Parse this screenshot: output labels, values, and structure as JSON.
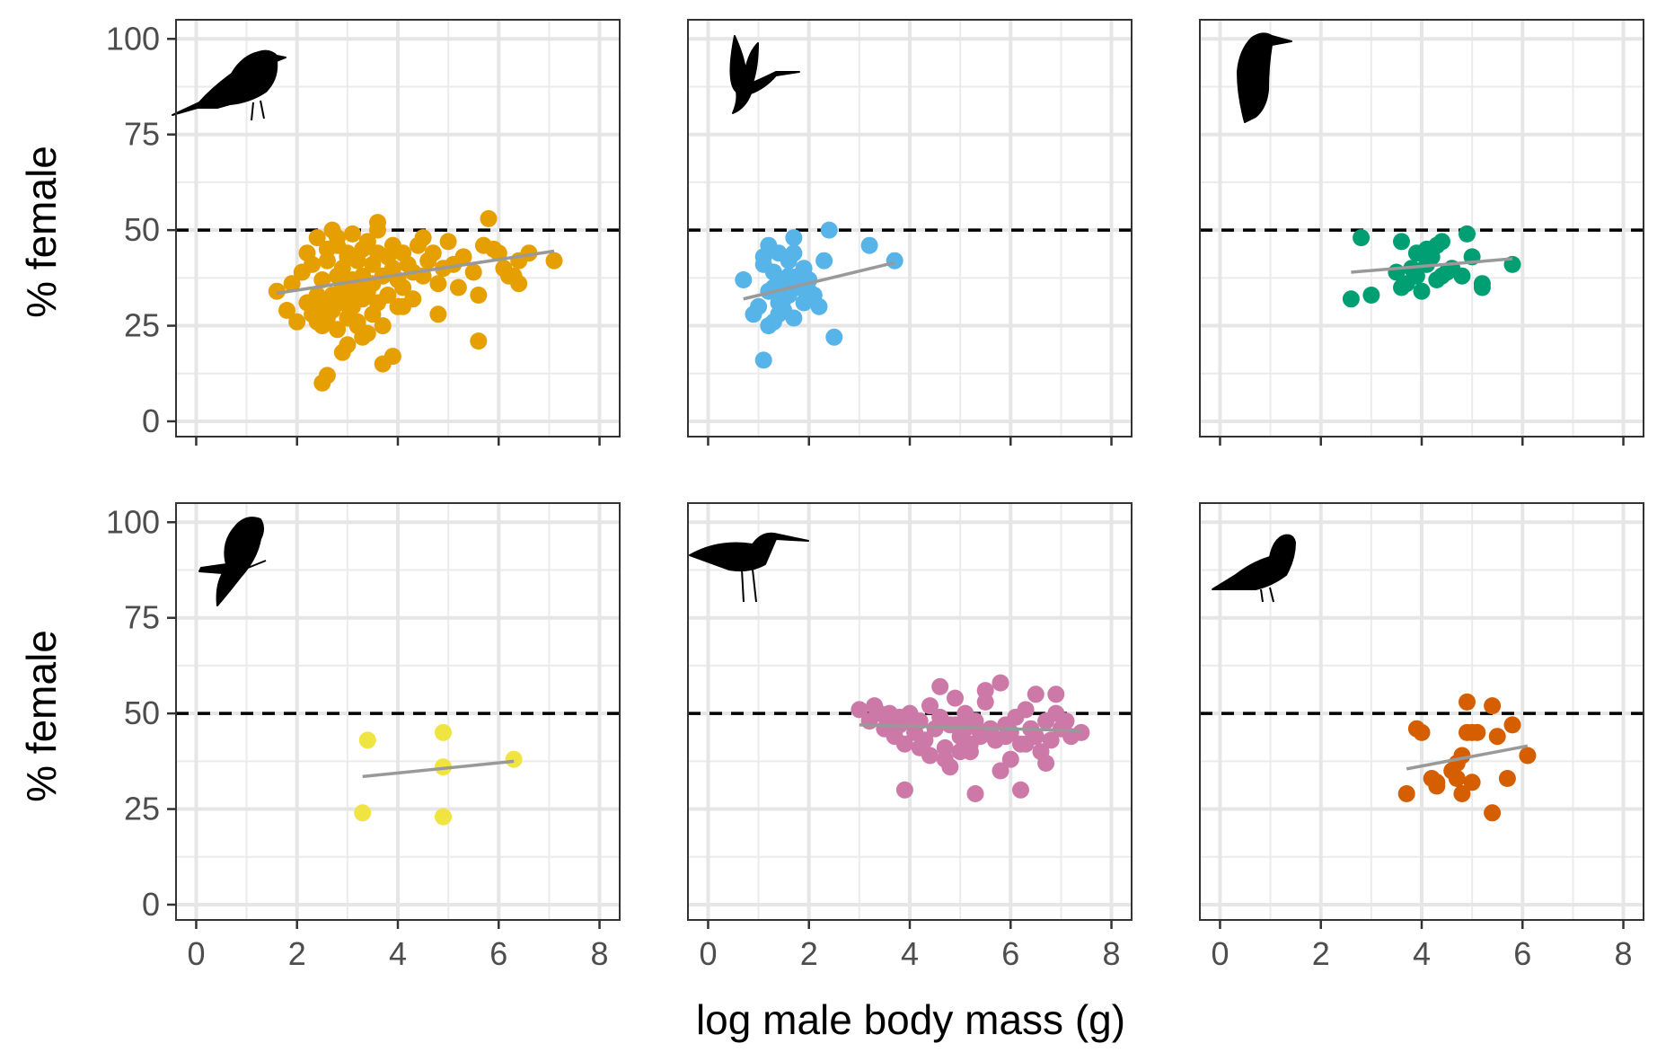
{
  "figure": {
    "ylabel": "% female",
    "xlabel": "log male body mass (g)",
    "reference_line_y": 50,
    "trend_line_color": "#999999",
    "reference_line_color": "#000000"
  },
  "chart_data": [
    {
      "type": "scatter",
      "panel_row": 1,
      "panel_col": 1,
      "icon": "songbird-silhouette-icon",
      "color": "#E69F00",
      "xlim": [
        -0.4,
        8.4
      ],
      "ylim": [
        -4,
        105
      ],
      "x_ticks": [
        0,
        2,
        4,
        6,
        8
      ],
      "y_ticks": [
        0,
        25,
        50,
        75,
        100
      ],
      "grid": true,
      "x": [
        1.6,
        1.8,
        1.9,
        2.0,
        2.1,
        2.2,
        2.2,
        2.3,
        2.3,
        2.4,
        2.4,
        2.5,
        2.5,
        2.5,
        2.6,
        2.6,
        2.6,
        2.7,
        2.7,
        2.7,
        2.8,
        2.8,
        2.8,
        2.9,
        2.9,
        2.9,
        3.0,
        3.0,
        3.0,
        3.0,
        3.1,
        3.1,
        3.1,
        3.2,
        3.2,
        3.2,
        3.3,
        3.3,
        3.3,
        3.4,
        3.4,
        3.4,
        3.5,
        3.5,
        3.5,
        3.6,
        3.6,
        3.6,
        3.7,
        3.7,
        3.8,
        3.8,
        3.9,
        3.9,
        4.0,
        4.0,
        4.1,
        4.1,
        4.2,
        4.3,
        4.4,
        4.5,
        4.6,
        4.7,
        4.8,
        5.0,
        5.1,
        5.3,
        5.5,
        5.7,
        5.8,
        6.0,
        6.2,
        6.4,
        6.6,
        7.1,
        2.5,
        2.6,
        4.8,
        5.6,
        6.4,
        5.6,
        3.7,
        3.9,
        2.9,
        3.2,
        5.2,
        6.1,
        4.1,
        3.3,
        2.4,
        4.3,
        4.9,
        6.3,
        5.9,
        3.6,
        2.8,
        3.0,
        4.5,
        3.4
      ],
      "y": [
        34,
        29,
        36,
        26,
        39,
        31,
        44,
        28,
        41,
        33,
        48,
        25,
        37,
        30,
        45,
        27,
        42,
        33,
        50,
        29,
        38,
        24,
        46,
        31,
        35,
        40,
        27,
        43,
        33,
        20,
        37,
        49,
        30,
        42,
        26,
        35,
        45,
        32,
        38,
        23,
        47,
        34,
        41,
        28,
        36,
        44,
        31,
        52,
        38,
        25,
        43,
        33,
        40,
        46,
        30,
        37,
        44,
        35,
        41,
        39,
        46,
        38,
        42,
        44,
        36,
        47,
        41,
        43,
        39,
        46,
        53,
        44,
        38,
        42,
        44,
        42,
        10,
        12,
        28,
        33,
        36,
        21,
        15,
        17,
        18,
        25,
        35,
        40,
        30,
        22,
        26,
        32,
        40,
        38,
        45,
        50,
        48,
        44,
        48,
        47
      ],
      "trend": {
        "x": [
          1.6,
          7.1
        ],
        "y": [
          33.5,
          44.5
        ]
      }
    },
    {
      "type": "scatter",
      "panel_row": 1,
      "panel_col": 2,
      "icon": "hummingbird-silhouette-icon",
      "color": "#56B4E9",
      "xlim": [
        -0.4,
        8.4
      ],
      "ylim": [
        -4,
        105
      ],
      "x_ticks": [
        0,
        2,
        4,
        6,
        8
      ],
      "y_ticks": [
        0,
        25,
        50,
        75,
        100
      ],
      "grid": true,
      "x": [
        0.7,
        0.9,
        1.0,
        1.1,
        1.1,
        1.2,
        1.2,
        1.3,
        1.3,
        1.4,
        1.4,
        1.5,
        1.5,
        1.6,
        1.6,
        1.7,
        1.7,
        1.8,
        1.8,
        1.9,
        1.9,
        2.0,
        2.1,
        2.2,
        2.3,
        2.4,
        2.5,
        3.2,
        3.7,
        1.1,
        1.3,
        1.5,
        1.6,
        1.2,
        1.9,
        1.4,
        1.7,
        2.0
      ],
      "y": [
        37,
        28,
        30,
        41,
        16,
        46,
        34,
        26,
        39,
        31,
        44,
        29,
        36,
        33,
        42,
        48,
        27,
        38,
        35,
        31,
        40,
        37,
        33,
        30,
        42,
        50,
        22,
        46,
        42,
        43,
        35,
        32,
        38,
        25,
        36,
        28,
        44,
        34
      ],
      "trend": {
        "x": [
          0.7,
          3.7
        ],
        "y": [
          32.0,
          41.5
        ]
      }
    },
    {
      "type": "scatter",
      "panel_row": 1,
      "panel_col": 3,
      "icon": "woodpecker-silhouette-icon",
      "color": "#009E73",
      "xlim": [
        -0.4,
        8.4
      ],
      "ylim": [
        -4,
        105
      ],
      "x_ticks": [
        0,
        2,
        4,
        6,
        8
      ],
      "y_ticks": [
        0,
        25,
        50,
        75,
        100
      ],
      "grid": true,
      "x": [
        2.6,
        2.8,
        3.0,
        3.5,
        3.6,
        3.7,
        3.8,
        3.9,
        3.9,
        4.0,
        4.1,
        4.1,
        4.2,
        4.3,
        4.3,
        4.4,
        4.5,
        4.6,
        4.8,
        4.9,
        5.0,
        5.2,
        5.2,
        5.8,
        3.6,
        4.4
      ],
      "y": [
        32,
        48,
        33,
        39,
        47,
        36,
        40,
        44,
        38,
        34,
        45,
        41,
        43,
        37,
        46,
        47,
        39,
        40,
        38,
        49,
        43,
        36,
        35,
        41,
        35,
        38
      ],
      "trend": {
        "x": [
          2.6,
          5.8
        ],
        "y": [
          39.0,
          42.5
        ]
      }
    },
    {
      "type": "scatter",
      "panel_row": 2,
      "panel_col": 1,
      "icon": "parrot-silhouette-icon",
      "color": "#F0E442",
      "xlim": [
        -0.4,
        8.4
      ],
      "ylim": [
        -4,
        105
      ],
      "x_ticks": [
        0,
        2,
        4,
        6,
        8
      ],
      "y_ticks": [
        0,
        25,
        50,
        75,
        100
      ],
      "grid": true,
      "x": [
        3.3,
        3.4,
        4.9,
        4.9,
        4.9,
        6.3
      ],
      "y": [
        24,
        43,
        45,
        36,
        23,
        38
      ],
      "trend": {
        "x": [
          3.3,
          6.3
        ],
        "y": [
          33.5,
          37.5
        ]
      }
    },
    {
      "type": "scatter",
      "panel_row": 2,
      "panel_col": 2,
      "icon": "shorebird-silhouette-icon",
      "color": "#CC79A7",
      "xlim": [
        -0.4,
        8.4
      ],
      "ylim": [
        -4,
        105
      ],
      "x_ticks": [
        0,
        2,
        4,
        6,
        8
      ],
      "y_ticks": [
        0,
        25,
        50,
        75,
        100
      ],
      "grid": true,
      "x": [
        3.0,
        3.2,
        3.4,
        3.5,
        3.6,
        3.7,
        3.8,
        3.9,
        4.0,
        4.1,
        4.2,
        4.3,
        4.4,
        4.5,
        4.6,
        4.7,
        4.8,
        4.9,
        5.0,
        5.1,
        5.2,
        5.3,
        5.4,
        5.5,
        5.6,
        5.7,
        5.8,
        5.9,
        6.0,
        6.1,
        6.2,
        6.3,
        6.4,
        6.5,
        6.6,
        6.7,
        6.8,
        6.9,
        7.0,
        7.2,
        7.4,
        3.9,
        5.3,
        6.2,
        4.8,
        5.8,
        4.2,
        5.0,
        6.0,
        4.6,
        5.5,
        6.5,
        4.3,
        5.1,
        5.9,
        7.1,
        4.4,
        3.3,
        6.7,
        5.2,
        4.9,
        5.7,
        3.6,
        6.9,
        4.0,
        5.4,
        6.3,
        4.7,
        5.6,
        3.8
      ],
      "y": [
        51,
        48,
        50,
        46,
        49,
        44,
        47,
        42,
        50,
        45,
        48,
        43,
        52,
        46,
        49,
        41,
        47,
        54,
        44,
        50,
        42,
        48,
        45,
        56,
        46,
        43,
        58,
        47,
        45,
        49,
        42,
        51,
        46,
        44,
        40,
        48,
        43,
        50,
        46,
        44,
        45,
        30,
        29,
        30,
        36,
        35,
        41,
        40,
        38,
        57,
        53,
        55,
        43,
        46,
        44,
        48,
        39,
        52,
        37,
        40,
        47,
        43,
        50,
        55,
        48,
        44,
        42,
        38,
        45,
        49
      ],
      "trend": {
        "x": [
          3.0,
          7.4
        ],
        "y": [
          47.0,
          45.5
        ]
      }
    },
    {
      "type": "scatter",
      "panel_row": 2,
      "panel_col": 3,
      "icon": "pigeon-silhouette-icon",
      "color": "#D55E00",
      "xlim": [
        -0.4,
        8.4
      ],
      "ylim": [
        -4,
        105
      ],
      "x_ticks": [
        0,
        2,
        4,
        6,
        8
      ],
      "y_ticks": [
        0,
        25,
        50,
        75,
        100
      ],
      "grid": true,
      "x": [
        3.7,
        3.9,
        4.0,
        4.2,
        4.3,
        4.3,
        4.6,
        4.7,
        4.8,
        4.8,
        4.9,
        5.0,
        5.1,
        5.4,
        5.4,
        5.5,
        5.7,
        5.8,
        6.1,
        4.9,
        5.0,
        4.7
      ],
      "y": [
        29,
        46,
        45,
        33,
        31,
        32,
        35,
        33,
        39,
        29,
        53,
        45,
        45,
        24,
        52,
        44,
        33,
        47,
        39,
        45,
        32,
        37
      ],
      "trend": {
        "x": [
          3.7,
          6.1
        ],
        "y": [
          35.5,
          41.5
        ]
      }
    }
  ]
}
